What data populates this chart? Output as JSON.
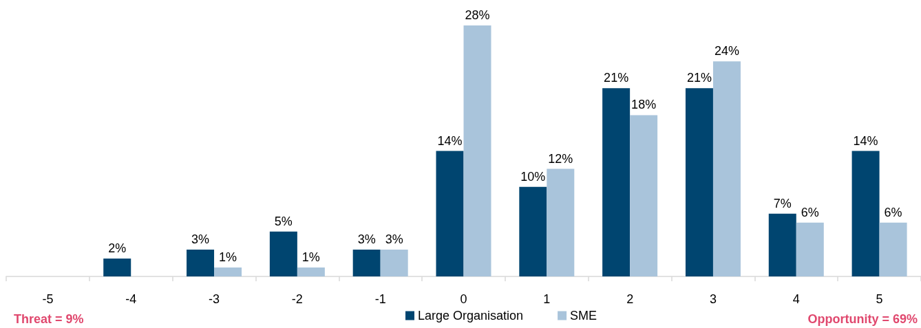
{
  "chart_data": {
    "type": "bar",
    "categories": [
      "-5",
      "-4",
      "-3",
      "-2",
      "-1",
      "0",
      "1",
      "2",
      "3",
      "4",
      "5"
    ],
    "series": [
      {
        "name": "Large Organisation",
        "color": "#004570",
        "values": [
          null,
          2,
          3,
          5,
          3,
          14,
          10,
          21,
          21,
          7,
          14
        ],
        "value_labels": [
          null,
          "2%",
          "3%",
          "5%",
          "3%",
          "14%",
          "10%",
          "21%",
          "21%",
          "7%",
          "14%"
        ]
      },
      {
        "name": "SME",
        "color": "#a9c4db",
        "values": [
          null,
          null,
          1,
          1,
          3,
          28,
          12,
          18,
          24,
          6,
          6
        ],
        "value_labels": [
          null,
          null,
          "1%",
          "1%",
          "3%",
          "28%",
          "12%",
          "18%",
          "24%",
          "6%",
          "6%"
        ]
      }
    ],
    "annotations": [
      "Threat = 9%",
      "Opportunity = 69%"
    ],
    "legend": "bottom",
    "grid": false,
    "tick_labels": "x"
  }
}
